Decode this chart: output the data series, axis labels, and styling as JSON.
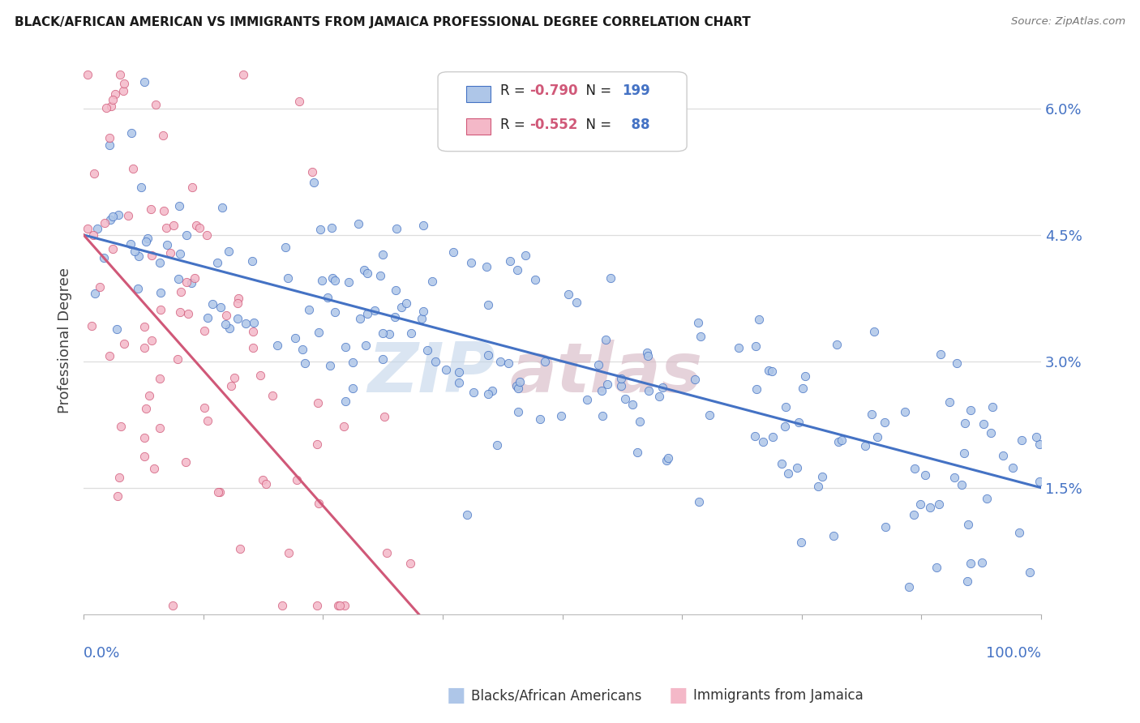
{
  "title": "BLACK/AFRICAN AMERICAN VS IMMIGRANTS FROM JAMAICA PROFESSIONAL DEGREE CORRELATION CHART",
  "source": "Source: ZipAtlas.com",
  "ylabel": "Professional Degree",
  "yticks": [
    0.015,
    0.03,
    0.045,
    0.06
  ],
  "ytick_labels": [
    "1.5%",
    "3.0%",
    "4.5%",
    "6.0%"
  ],
  "xlim": [
    0,
    100
  ],
  "ylim": [
    0,
    0.065
  ],
  "blue_color": "#aec6e8",
  "blue_edge": "#4472c4",
  "blue_line_color": "#4472c4",
  "pink_color": "#f4b8c8",
  "pink_edge": "#d05878",
  "pink_line_color": "#d05878",
  "R_blue": -0.79,
  "N_blue": 199,
  "R_pink": -0.552,
  "N_pink": 88,
  "axis_label_color": "#4472c4",
  "grid_color": "#dddddd",
  "title_color": "#1a1a1a",
  "bg_color": "#ffffff",
  "blue_line_intercept": 0.045,
  "blue_line_end": 0.015,
  "pink_line_intercept": 0.045,
  "pink_line_end_x": 35,
  "pink_line_end_y": 0.0,
  "bottom_legend_blue": "Blacks/African Americans",
  "bottom_legend_pink": "Immigrants from Jamaica"
}
